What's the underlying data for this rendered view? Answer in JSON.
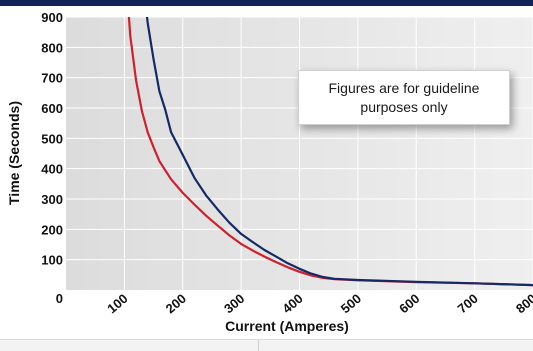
{
  "theme": {
    "top_band": "#12235a",
    "plot_bg": "#dcdcdc",
    "plot_bg_light": "#efefef",
    "grid": "#ffffff",
    "red_curve": "#d0202e",
    "navy_curve": "#142a66"
  },
  "note": {
    "text": "Figures are for guideline purposes only"
  },
  "chart_data": {
    "type": "line",
    "title": "",
    "xlabel": "Current (Amperes)",
    "ylabel": "Time (Seconds)",
    "xlim": [
      0,
      800
    ],
    "ylim": [
      0,
      900
    ],
    "x_ticks": [
      100,
      200,
      300,
      400,
      500,
      600,
      700,
      800
    ],
    "y_ticks": [
      100,
      200,
      300,
      400,
      500,
      600,
      700,
      800,
      900
    ],
    "grid": true,
    "series": [
      {
        "color": "#d0202e",
        "points": [
          [
            106,
            950
          ],
          [
            110,
            840
          ],
          [
            120,
            690
          ],
          [
            130,
            590
          ],
          [
            140,
            520
          ],
          [
            150,
            470
          ],
          [
            160,
            425
          ],
          [
            170,
            395
          ],
          [
            180,
            365
          ],
          [
            200,
            320
          ],
          [
            220,
            282
          ],
          [
            240,
            245
          ],
          [
            260,
            212
          ],
          [
            280,
            180
          ],
          [
            300,
            152
          ],
          [
            320,
            130
          ],
          [
            340,
            110
          ],
          [
            360,
            92
          ],
          [
            380,
            75
          ],
          [
            400,
            60
          ],
          [
            420,
            48
          ],
          [
            440,
            40
          ],
          [
            460,
            36
          ],
          [
            500,
            32
          ],
          [
            600,
            26
          ],
          [
            700,
            22
          ],
          [
            800,
            16
          ]
        ]
      },
      {
        "color": "#142a66",
        "points": [
          [
            136,
            950
          ],
          [
            140,
            880
          ],
          [
            150,
            760
          ],
          [
            160,
            655
          ],
          [
            170,
            595
          ],
          [
            180,
            520
          ],
          [
            200,
            445
          ],
          [
            220,
            370
          ],
          [
            240,
            312
          ],
          [
            260,
            265
          ],
          [
            280,
            222
          ],
          [
            300,
            185
          ],
          [
            320,
            158
          ],
          [
            340,
            132
          ],
          [
            360,
            110
          ],
          [
            380,
            88
          ],
          [
            400,
            70
          ],
          [
            420,
            54
          ],
          [
            440,
            43
          ],
          [
            460,
            37
          ],
          [
            500,
            33
          ],
          [
            600,
            27
          ],
          [
            700,
            22
          ],
          [
            800,
            16
          ]
        ]
      }
    ]
  }
}
